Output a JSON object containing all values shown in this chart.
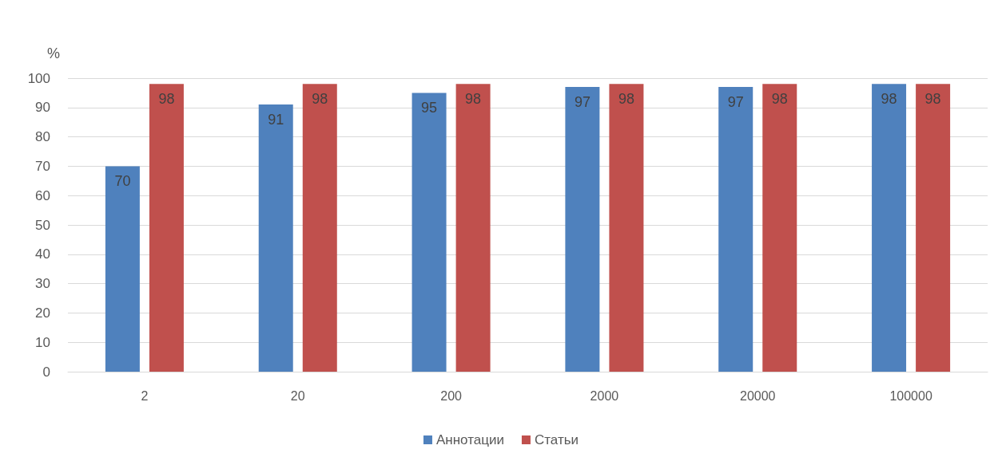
{
  "chart_data": {
    "type": "bar",
    "ylabel": "%",
    "categories": [
      "2",
      "20",
      "200",
      "2000",
      "20000",
      "100000"
    ],
    "series": [
      {
        "name": "Аннотации",
        "color": "#4f81bd",
        "values": [
          70,
          91,
          95,
          97,
          97,
          98
        ]
      },
      {
        "name": "Статьи",
        "color": "#c0504d",
        "values": [
          98,
          98,
          98,
          98,
          98,
          98
        ]
      }
    ],
    "ylim": [
      0,
      100
    ],
    "yticks": [
      0,
      10,
      20,
      30,
      40,
      50,
      60,
      70,
      80,
      90,
      100
    ],
    "grid": "y",
    "legend": "bottom",
    "data_labels": true
  }
}
